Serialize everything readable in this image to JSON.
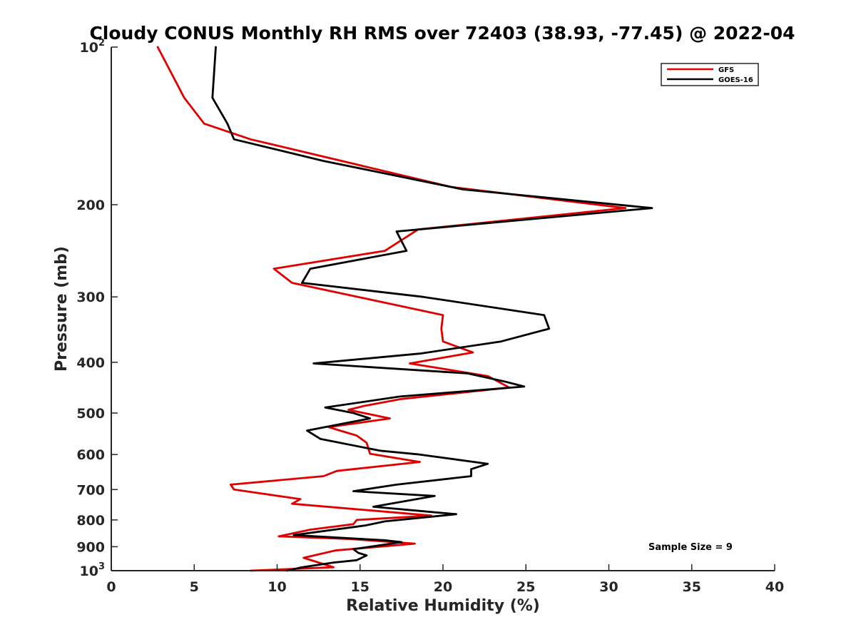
{
  "chart_data": {
    "type": "line",
    "title": "Cloudy CONUS Monthly RH RMS over 72403 (38.93, -77.45) @ 2022-04",
    "xlabel": "Relative Humidity (%)",
    "ylabel": "Pressure (mb)",
    "xlim": [
      0,
      40
    ],
    "ylim": [
      100,
      1000
    ],
    "y_scale": "log",
    "y_reversed": true,
    "grid": false,
    "legend_position": "top-right",
    "x_ticks": [
      "0",
      "5",
      "10",
      "15",
      "20",
      "25",
      "30",
      "35",
      "40"
    ],
    "y_ticks": [
      {
        "value": 100,
        "base": "10",
        "exp": "2"
      },
      {
        "value": 200,
        "label": "200"
      },
      {
        "value": 300,
        "label": "300"
      },
      {
        "value": 400,
        "label": "400"
      },
      {
        "value": 500,
        "label": "500"
      },
      {
        "value": 600,
        "label": "600"
      },
      {
        "value": 700,
        "label": "700"
      },
      {
        "value": 800,
        "label": "800"
      },
      {
        "value": 900,
        "label": "900"
      },
      {
        "value": 1000,
        "base": "10",
        "exp": "3"
      }
    ],
    "series": [
      {
        "name": "GFS",
        "color": "#e00000",
        "points": [
          [
            2.8,
            100
          ],
          [
            4.4,
            125
          ],
          [
            5.6,
            140
          ],
          [
            8.4,
            150
          ],
          [
            20.5,
            185
          ],
          [
            31.0,
            203
          ],
          [
            18.5,
            223
          ],
          [
            16.5,
            245
          ],
          [
            9.8,
            265
          ],
          [
            10.9,
            282
          ],
          [
            20.0,
            325
          ],
          [
            19.9,
            345
          ],
          [
            20.0,
            365
          ],
          [
            21.8,
            383
          ],
          [
            18.0,
            402
          ],
          [
            22.7,
            425
          ],
          [
            24.0,
            447
          ],
          [
            17.5,
            470
          ],
          [
            15.2,
            485
          ],
          [
            14.3,
            493
          ],
          [
            16.8,
            512
          ],
          [
            13.1,
            532
          ],
          [
            14.8,
            552
          ],
          [
            15.4,
            570
          ],
          [
            15.6,
            598
          ],
          [
            18.6,
            620
          ],
          [
            13.6,
            645
          ],
          [
            12.8,
            660
          ],
          [
            7.2,
            685
          ],
          [
            7.4,
            700
          ],
          [
            11.4,
            730
          ],
          [
            10.9,
            745
          ],
          [
            19.3,
            785
          ],
          [
            14.8,
            800
          ],
          [
            14.6,
            815
          ],
          [
            12.0,
            835
          ],
          [
            10.1,
            860
          ],
          [
            14.4,
            870
          ],
          [
            18.3,
            888
          ],
          [
            13.5,
            915
          ],
          [
            11.6,
            945
          ],
          [
            13.4,
            985
          ],
          [
            8.4,
            1000
          ]
        ]
      },
      {
        "name": "GOES-16",
        "color": "#000000",
        "points": [
          [
            6.3,
            100
          ],
          [
            6.1,
            125
          ],
          [
            7.0,
            140
          ],
          [
            7.4,
            150
          ],
          [
            12.8,
            165
          ],
          [
            21.2,
            187
          ],
          [
            32.6,
            203
          ],
          [
            17.2,
            225
          ],
          [
            17.8,
            245
          ],
          [
            12.0,
            265
          ],
          [
            11.5,
            282
          ],
          [
            18.8,
            300
          ],
          [
            26.1,
            325
          ],
          [
            26.4,
            345
          ],
          [
            23.5,
            365
          ],
          [
            18.6,
            385
          ],
          [
            12.2,
            402
          ],
          [
            21.5,
            420
          ],
          [
            23.7,
            435
          ],
          [
            24.9,
            445
          ],
          [
            17.4,
            465
          ],
          [
            12.9,
            488
          ],
          [
            14.6,
            500
          ],
          [
            15.6,
            512
          ],
          [
            11.8,
            540
          ],
          [
            12.6,
            560
          ],
          [
            16.2,
            590
          ],
          [
            18.6,
            600
          ],
          [
            22.7,
            625
          ],
          [
            21.7,
            640
          ],
          [
            21.7,
            660
          ],
          [
            17.2,
            685
          ],
          [
            14.6,
            705
          ],
          [
            19.5,
            720
          ],
          [
            15.8,
            755
          ],
          [
            18.8,
            770
          ],
          [
            20.8,
            780
          ],
          [
            16.5,
            805
          ],
          [
            15.3,
            820
          ],
          [
            11.0,
            855
          ],
          [
            16.5,
            875
          ],
          [
            17.5,
            882
          ],
          [
            14.6,
            910
          ],
          [
            14.9,
            925
          ],
          [
            15.4,
            935
          ],
          [
            14.8,
            955
          ],
          [
            13.4,
            965
          ],
          [
            11.5,
            985
          ],
          [
            10.6,
            1000
          ]
        ]
      }
    ],
    "annotation": "Sample Size = 9"
  }
}
